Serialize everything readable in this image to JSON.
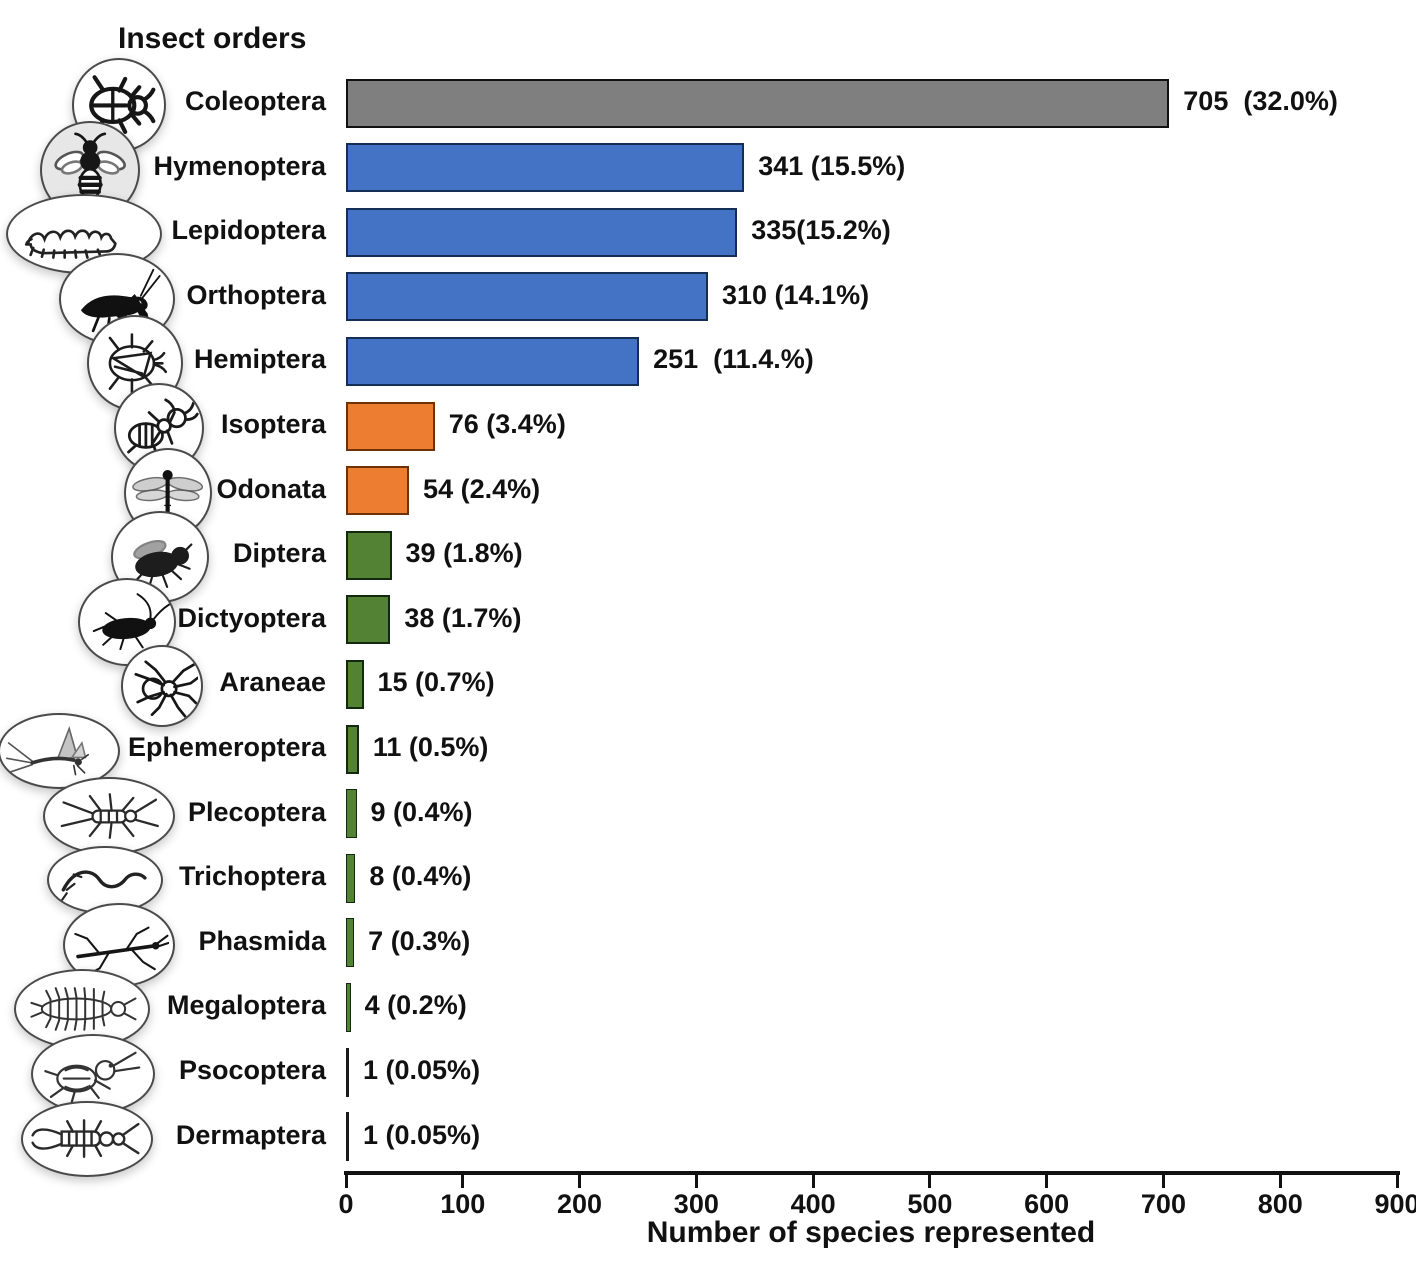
{
  "title": "Insect orders",
  "x_axis": {
    "label": "Number of species represented",
    "ticks": [
      0,
      100,
      200,
      300,
      400,
      500,
      600,
      700,
      800,
      900
    ],
    "max": 900
  },
  "palette": {
    "gray": "#7f7f7f",
    "blue": "#4472c4",
    "orange": "#ed7d31",
    "green": "#548235",
    "dark": "#1a1a1a",
    "gray_border": "#111111",
    "blue_border": "#132f55",
    "orange_border": "#6e3208",
    "green_border": "#13290f",
    "dark_border": "#1a1a1a",
    "axis": "#111111"
  },
  "rows": [
    {
      "order": "Coleoptera",
      "value": 705,
      "value_label": "705  (32.0%)",
      "color": "gray",
      "icon": "beetle-icon"
    },
    {
      "order": "Hymenoptera",
      "value": 341,
      "value_label": "341 (15.5%)",
      "color": "blue",
      "icon": "bee-icon"
    },
    {
      "order": "Lepidoptera",
      "value": 335,
      "value_label": "335(15.2%)",
      "color": "blue",
      "icon": "caterpillar-icon"
    },
    {
      "order": "Orthoptera",
      "value": 310,
      "value_label": "310 (14.1%)",
      "color": "blue",
      "icon": "grasshopper-icon"
    },
    {
      "order": "Hemiptera",
      "value": 251,
      "value_label": "251  (11.4.%)",
      "color": "blue",
      "icon": "true-bug-icon"
    },
    {
      "order": "Isoptera",
      "value": 76,
      "value_label": "76 (3.4%)",
      "color": "orange",
      "icon": "termite-icon"
    },
    {
      "order": "Odonata",
      "value": 54,
      "value_label": "54 (2.4%)",
      "color": "orange",
      "icon": "dragonfly-icon"
    },
    {
      "order": "Diptera",
      "value": 39,
      "value_label": "39 (1.8%)",
      "color": "green",
      "icon": "fly-icon"
    },
    {
      "order": "Dictyoptera",
      "value": 38,
      "value_label": "38 (1.7%)",
      "color": "green",
      "icon": "cockroach-icon"
    },
    {
      "order": "Araneae",
      "value": 15,
      "value_label": "15 (0.7%)",
      "color": "green",
      "icon": "spider-icon"
    },
    {
      "order": "Ephemeroptera",
      "value": 11,
      "value_label": "11 (0.5%)",
      "color": "green",
      "icon": "mayfly-icon"
    },
    {
      "order": "Plecoptera",
      "value": 9,
      "value_label": "9 (0.4%)",
      "color": "green",
      "icon": "stonefly-icon"
    },
    {
      "order": "Trichoptera",
      "value": 8,
      "value_label": "8 (0.4%)",
      "color": "green",
      "icon": "caddisfly-icon"
    },
    {
      "order": "Phasmida",
      "value": 7,
      "value_label": "7 (0.3%)",
      "color": "green",
      "icon": "stick-insect-icon"
    },
    {
      "order": "Megaloptera",
      "value": 4,
      "value_label": "4 (0.2%)",
      "color": "green",
      "icon": "hellgrammite-icon"
    },
    {
      "order": "Psocoptera",
      "value": 1,
      "value_label": "1 (0.05%)",
      "color": "dark",
      "icon": "barklouse-icon"
    },
    {
      "order": "Dermaptera",
      "value": 1,
      "value_label": "1 (0.05%)",
      "color": "dark",
      "icon": "earwig-icon"
    }
  ],
  "chart_data": {
    "type": "bar",
    "orientation": "horizontal",
    "title": "Insect orders",
    "xlabel": "Number of species represented",
    "xlim": [
      0,
      900
    ],
    "x_ticks": [
      0,
      100,
      200,
      300,
      400,
      500,
      600,
      700,
      800,
      900
    ],
    "grid": false,
    "legend": false,
    "categories": [
      "Coleoptera",
      "Hymenoptera",
      "Lepidoptera",
      "Orthoptera",
      "Hemiptera",
      "Isoptera",
      "Odonata",
      "Diptera",
      "Dictyoptera",
      "Araneae",
      "Ephemeroptera",
      "Plecoptera",
      "Trichoptera",
      "Phasmida",
      "Megaloptera",
      "Psocoptera",
      "Dermaptera"
    ],
    "values": [
      705,
      341,
      335,
      310,
      251,
      76,
      54,
      39,
      38,
      15,
      11,
      9,
      8,
      7,
      4,
      1,
      1
    ],
    "percents": [
      "32.0%",
      "15.5%",
      "15.2%",
      "14.1%",
      "11.4.%",
      "3.4%",
      "2.4%",
      "1.8%",
      "1.7%",
      "0.7%",
      "0.5%",
      "0.4%",
      "0.4%",
      "0.3%",
      "0.2%",
      "0.05%",
      "0.05%"
    ],
    "bar_colors": [
      "#7f7f7f",
      "#4472c4",
      "#4472c4",
      "#4472c4",
      "#4472c4",
      "#ed7d31",
      "#ed7d31",
      "#548235",
      "#548235",
      "#548235",
      "#548235",
      "#548235",
      "#548235",
      "#548235",
      "#548235",
      "#1a1a1a",
      "#1a1a1a"
    ]
  }
}
